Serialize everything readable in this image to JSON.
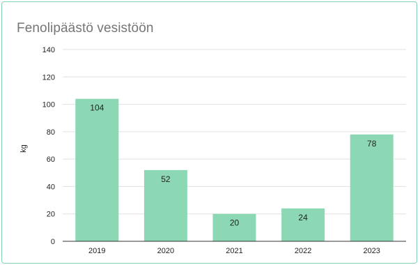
{
  "chart_data": {
    "type": "bar",
    "title": "Fenolipäästö vesistöön",
    "xlabel": "",
    "ylabel": "kg",
    "categories": [
      "2019",
      "2020",
      "2021",
      "2022",
      "2023"
    ],
    "values": [
      104,
      52,
      20,
      24,
      78
    ],
    "ylim": [
      0,
      140
    ],
    "yticks": [
      0,
      20,
      40,
      60,
      80,
      100,
      120,
      140
    ],
    "grid": true,
    "legend": "none",
    "bar_color": "#8dd8b4",
    "data_labels": [
      "104",
      "52",
      "20",
      "24",
      "78"
    ]
  },
  "colors": {
    "border": "#7fd3ae",
    "title": "#757575",
    "grid": "#e0e0e0",
    "axis": "#333333"
  }
}
